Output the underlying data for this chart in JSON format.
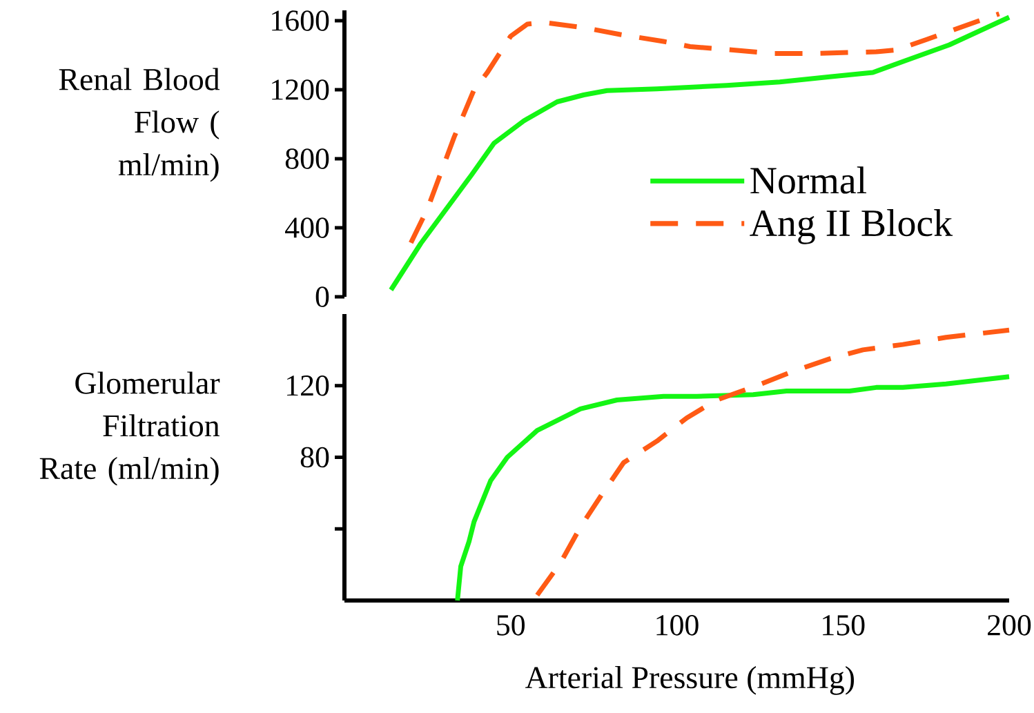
{
  "chart_data": [
    {
      "type": "line",
      "ylabel": "Renal Blood Flow ( ml/min)",
      "xlim": [
        0,
        200
      ],
      "ylim": [
        0,
        1660
      ],
      "yticks": [
        0,
        400,
        800,
        1200,
        1600
      ],
      "tick_labels": "y",
      "legend": "right",
      "series": [
        {
          "name": "Normal",
          "color": "#14f514",
          "line_style": "solid",
          "x": [
            14,
            23,
            38,
            45,
            54,
            64,
            72,
            79,
            94,
            115,
            131,
            146,
            159,
            169,
            182,
            200
          ],
          "values": [
            40,
            310,
            700,
            890,
            1020,
            1130,
            1170,
            1195,
            1205,
            1225,
            1245,
            1275,
            1300,
            1370,
            1460,
            1620
          ]
        },
        {
          "name": "Ang II Block",
          "color": "#ff5a14",
          "line_style": "dashed",
          "x": [
            20,
            25,
            33,
            39,
            43,
            50,
            55,
            60,
            72,
            83,
            96,
            104,
            117,
            129,
            141,
            160,
            166,
            175,
            191,
            197
          ],
          "values": [
            313,
            510,
            925,
            1200,
            1300,
            1510,
            1580,
            1590,
            1560,
            1520,
            1480,
            1450,
            1430,
            1410,
            1410,
            1420,
            1430,
            1490,
            1600,
            1640
          ]
        }
      ]
    },
    {
      "type": "line",
      "ylabel": "Glomerular Filtration Rate (ml/min)",
      "xlabel": "Arterial Pressure (mmHg)",
      "xlim": [
        0,
        200
      ],
      "xticks": [
        50,
        100,
        150,
        200
      ],
      "ylim": [
        0,
        160
      ],
      "yticks": [
        {
          "value": 40,
          "label": null
        },
        80,
        120
      ],
      "series": [
        {
          "color": "#14f514",
          "line_style": "solid",
          "x": [
            34,
            35,
            37.5,
            39,
            44,
            49,
            52,
            58,
            71,
            82,
            96,
            106,
            123,
            133,
            152,
            160,
            168,
            181,
            200
          ],
          "values": [
            0,
            19,
            33,
            44,
            67,
            80,
            85,
            95,
            107,
            112,
            114,
            114,
            115,
            117,
            117,
            119,
            119,
            121,
            125
          ]
        },
        {
          "color": "#ff5a14",
          "line_style": "dashed",
          "x": [
            58,
            65,
            71,
            77,
            84,
            94,
            103,
            112,
            124,
            135,
            146,
            156,
            168,
            181,
            200
          ],
          "values": [
            3,
            21,
            41,
            58,
            77,
            89,
            102,
            112,
            120,
            128,
            135,
            140,
            143,
            147,
            151
          ]
        }
      ]
    }
  ]
}
